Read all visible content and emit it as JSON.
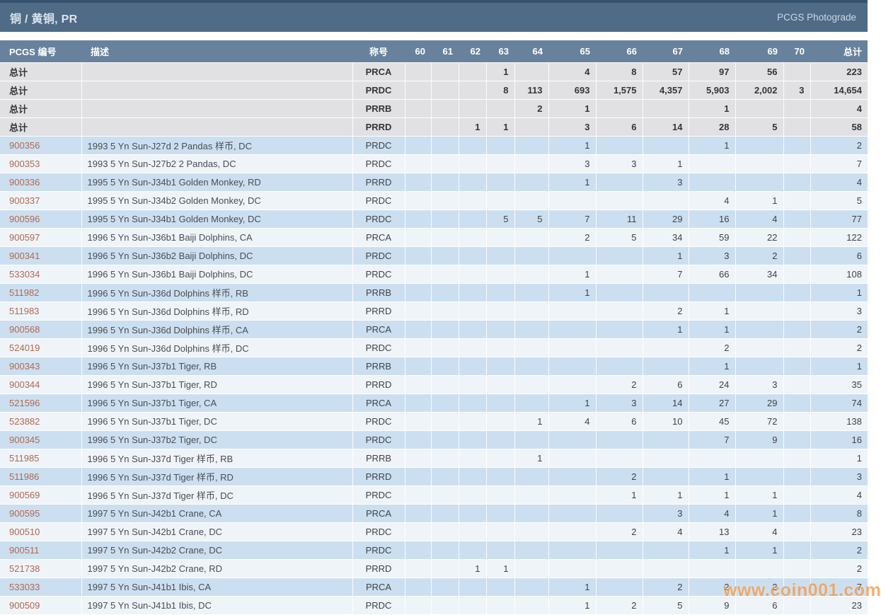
{
  "title": "铜 / 黄铜, PR",
  "brand": "PCGS Photograde",
  "watermark": "www.coin001.com",
  "colors": {
    "title_bar": "#4f6b86",
    "header_bar": "#68829d",
    "totals_row": "#e1e1e4",
    "row_blue": "#cbdff0",
    "row_light": "#eff4f9",
    "pcgs_number_link": "#b3684e",
    "watermark_orange": "#f29a4a"
  },
  "table": {
    "headers": [
      "PCGS 编号",
      "描述",
      "称号",
      "60",
      "61",
      "62",
      "63",
      "64",
      "65",
      "66",
      "67",
      "68",
      "69",
      "70",
      "总计"
    ],
    "totals": [
      {
        "cells": [
          "总计",
          "",
          "PRCA",
          "",
          "",
          "",
          "1",
          "",
          "4",
          "8",
          "57",
          "97",
          "56",
          "",
          "223"
        ]
      },
      {
        "cells": [
          "总计",
          "",
          "PRDC",
          "",
          "",
          "",
          "8",
          "113",
          "693",
          "1,575",
          "4,357",
          "5,903",
          "2,002",
          "3",
          "14,654"
        ]
      },
      {
        "cells": [
          "总计",
          "",
          "PRRB",
          "",
          "",
          "",
          "",
          "2",
          "1",
          "",
          "",
          "1",
          "",
          "",
          "4"
        ]
      },
      {
        "cells": [
          "总计",
          "",
          "PRRD",
          "",
          "",
          "1",
          "1",
          "",
          "3",
          "6",
          "14",
          "28",
          "5",
          "",
          "58"
        ]
      }
    ],
    "rows": [
      {
        "cells": [
          "900356",
          "1993 5 Yn Sun-J27d 2 Pandas 样币, DC",
          "PRDC",
          "",
          "",
          "",
          "",
          "",
          "1",
          "",
          "",
          "1",
          "",
          "",
          "2"
        ]
      },
      {
        "cells": [
          "900353",
          "1993 5 Yn Sun-J27b2 2 Pandas, DC",
          "PRDC",
          "",
          "",
          "",
          "",
          "",
          "3",
          "3",
          "1",
          "",
          "",
          "",
          "7"
        ]
      },
      {
        "cells": [
          "900336",
          "1995 5 Yn Sun-J34b1 Golden Monkey, RD",
          "PRRD",
          "",
          "",
          "",
          "",
          "",
          "1",
          "",
          "3",
          "",
          "",
          "",
          "4"
        ]
      },
      {
        "cells": [
          "900337",
          "1995 5 Yn Sun-J34b2 Golden Monkey, DC",
          "PRDC",
          "",
          "",
          "",
          "",
          "",
          "",
          "",
          "",
          "4",
          "1",
          "",
          "5"
        ]
      },
      {
        "cells": [
          "900596",
          "1995 5 Yn Sun-J34b1 Golden Monkey, DC",
          "PRDC",
          "",
          "",
          "",
          "5",
          "5",
          "7",
          "11",
          "29",
          "16",
          "4",
          "",
          "77"
        ]
      },
      {
        "cells": [
          "900597",
          "1996 5 Yn Sun-J36b1 Baiji Dolphins, CA",
          "PRCA",
          "",
          "",
          "",
          "",
          "",
          "2",
          "5",
          "34",
          "59",
          "22",
          "",
          "122"
        ]
      },
      {
        "cells": [
          "900341",
          "1996 5 Yn Sun-J36b2 Baiji Dolphins, DC",
          "PRDC",
          "",
          "",
          "",
          "",
          "",
          "",
          "",
          "1",
          "3",
          "2",
          "",
          "6"
        ]
      },
      {
        "cells": [
          "533034",
          "1996 5 Yn Sun-J36b1 Baiji Dolphins, DC",
          "PRDC",
          "",
          "",
          "",
          "",
          "",
          "1",
          "",
          "7",
          "66",
          "34",
          "",
          "108"
        ]
      },
      {
        "cells": [
          "511982",
          "1996 5 Yn Sun-J36d Dolphins 样币, RB",
          "PRRB",
          "",
          "",
          "",
          "",
          "",
          "1",
          "",
          "",
          "",
          "",
          "",
          "1"
        ]
      },
      {
        "cells": [
          "511983",
          "1996 5 Yn Sun-J36d Dolphins 样币, RD",
          "PRRD",
          "",
          "",
          "",
          "",
          "",
          "",
          "",
          "2",
          "1",
          "",
          "",
          "3"
        ]
      },
      {
        "cells": [
          "900568",
          "1996 5 Yn Sun-J36d Dolphins 样币, CA",
          "PRCA",
          "",
          "",
          "",
          "",
          "",
          "",
          "",
          "1",
          "1",
          "",
          "",
          "2"
        ]
      },
      {
        "cells": [
          "524019",
          "1996 5 Yn Sun-J36d Dolphins 样币, DC",
          "PRDC",
          "",
          "",
          "",
          "",
          "",
          "",
          "",
          "",
          "2",
          "",
          "",
          "2"
        ]
      },
      {
        "cells": [
          "900343",
          "1996 5 Yn Sun-J37b1 Tiger, RB",
          "PRRB",
          "",
          "",
          "",
          "",
          "",
          "",
          "",
          "",
          "1",
          "",
          "",
          "1"
        ]
      },
      {
        "cells": [
          "900344",
          "1996 5 Yn Sun-J37b1 Tiger, RD",
          "PRRD",
          "",
          "",
          "",
          "",
          "",
          "",
          "2",
          "6",
          "24",
          "3",
          "",
          "35"
        ]
      },
      {
        "cells": [
          "521596",
          "1996 5 Yn Sun-J37b1 Tiger, CA",
          "PRCA",
          "",
          "",
          "",
          "",
          "",
          "1",
          "3",
          "14",
          "27",
          "29",
          "",
          "74"
        ]
      },
      {
        "cells": [
          "523882",
          "1996 5 Yn Sun-J37b1 Tiger, DC",
          "PRDC",
          "",
          "",
          "",
          "",
          "1",
          "4",
          "6",
          "10",
          "45",
          "72",
          "",
          "138"
        ]
      },
      {
        "cells": [
          "900345",
          "1996 5 Yn Sun-J37b2 Tiger, DC",
          "PRDC",
          "",
          "",
          "",
          "",
          "",
          "",
          "",
          "",
          "7",
          "9",
          "",
          "16"
        ]
      },
      {
        "cells": [
          "511985",
          "1996 5 Yn Sun-J37d Tiger 样币, RB",
          "PRRB",
          "",
          "",
          "",
          "",
          "1",
          "",
          "",
          "",
          "",
          "",
          "",
          "1"
        ]
      },
      {
        "cells": [
          "511986",
          "1996 5 Yn Sun-J37d Tiger 样币, RD",
          "PRRD",
          "",
          "",
          "",
          "",
          "",
          "",
          "2",
          "",
          "1",
          "",
          "",
          "3"
        ]
      },
      {
        "cells": [
          "900569",
          "1996 5 Yn Sun-J37d Tiger 样币, DC",
          "PRDC",
          "",
          "",
          "",
          "",
          "",
          "",
          "1",
          "1",
          "1",
          "1",
          "",
          "4"
        ]
      },
      {
        "cells": [
          "900595",
          "1997 5 Yn Sun-J42b1 Crane, CA",
          "PRCA",
          "",
          "",
          "",
          "",
          "",
          "",
          "",
          "3",
          "4",
          "1",
          "",
          "8"
        ]
      },
      {
        "cells": [
          "900510",
          "1997 5 Yn Sun-J42b1 Crane, DC",
          "PRDC",
          "",
          "",
          "",
          "",
          "",
          "",
          "2",
          "4",
          "13",
          "4",
          "",
          "23"
        ]
      },
      {
        "cells": [
          "900511",
          "1997 5 Yn Sun-J42b2 Crane, DC",
          "PRDC",
          "",
          "",
          "",
          "",
          "",
          "",
          "",
          "",
          "1",
          "1",
          "",
          "2"
        ]
      },
      {
        "cells": [
          "521738",
          "1997 5 Yn Sun-J42b2 Crane, RD",
          "PRRD",
          "",
          "",
          "1",
          "1",
          "",
          "",
          "",
          "",
          "",
          "",
          "",
          "2"
        ]
      },
      {
        "cells": [
          "533033",
          "1997 5 Yn Sun-J41b1 Ibis, CA",
          "PRCA",
          "",
          "",
          "",
          "",
          "",
          "1",
          "",
          "2",
          "2",
          "2",
          "",
          "7"
        ]
      },
      {
        "cells": [
          "900509",
          "1997 5 Yn Sun-J41b1 Ibis, DC",
          "PRDC",
          "",
          "",
          "",
          "",
          "",
          "1",
          "2",
          "5",
          "9",
          "6",
          "",
          "23"
        ]
      }
    ]
  }
}
